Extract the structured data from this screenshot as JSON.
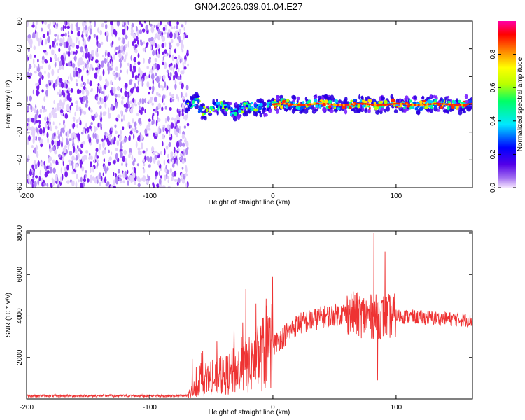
{
  "chart_data": [
    {
      "type": "heatmap",
      "title": "GN04.2026.039.01.04.E27",
      "xlabel": "Height of straight line (km)",
      "ylabel": "Frequency (Hz)",
      "xlim": [
        -200,
        162
      ],
      "ylim": [
        -60,
        60
      ],
      "xticks": [
        -200,
        -100,
        0,
        100
      ],
      "yticks": [
        -60,
        -40,
        -20,
        0,
        20,
        40,
        60
      ],
      "colorbar": {
        "label": "Normalized spectral amplitude",
        "range": [
          0,
          1
        ],
        "ticks": [
          "0.0",
          "0.2",
          "0.4",
          "0.6",
          "0.8"
        ]
      },
      "regions": [
        {
          "name": "broadband noise",
          "x_range": [
            -200,
            -70
          ],
          "freq_range": [
            -60,
            60
          ],
          "amplitude": 0.1
        },
        {
          "name": "signal band",
          "x_range": [
            -70,
            162
          ],
          "center_freq": 0,
          "half_width_hz": 5,
          "peak_amplitude": 1.0
        }
      ]
    },
    {
      "type": "line",
      "xlabel": "Height of straight line (km)",
      "ylabel": "SNR (10 * v/v)",
      "xlim": [
        -200,
        162
      ],
      "ylim": [
        0,
        8100
      ],
      "xticks": [
        -200,
        -100,
        0,
        100
      ],
      "yticks": [
        2000,
        4000,
        6000,
        8000
      ],
      "series": [
        {
          "name": "SNR",
          "color": "#ee3333",
          "envelope": {
            "x": [
              -200,
              -70,
              -60,
              -40,
              -20,
              0,
              20,
              40,
              60,
              80,
              100,
              130,
              162
            ],
            "y": [
              150,
              150,
              700,
              1100,
              1600,
              2600,
              3600,
              3950,
              4150,
              3950,
              4000,
              3900,
              3800
            ]
          },
          "spikes": [
            {
              "x": -58,
              "y": 2200
            },
            {
              "x": -22,
              "y": 5300
            },
            {
              "x": -5,
              "y": 4500
            },
            {
              "x": 82,
              "y": 8000
            },
            {
              "x": 85,
              "y": 900
            },
            {
              "x": 91,
              "y": 7100
            }
          ]
        }
      ]
    }
  ]
}
